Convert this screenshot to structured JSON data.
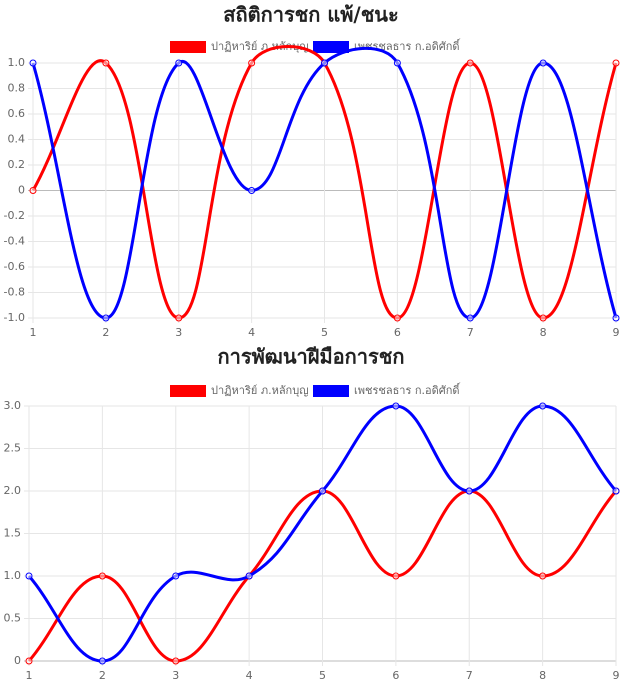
{
  "chart_data": [
    {
      "type": "line",
      "title": "สถิติการชก แพ้/ชนะ",
      "x": [
        1,
        2,
        3,
        4,
        5,
        6,
        7,
        8,
        9
      ],
      "series": [
        {
          "name": "ปาฏิหาริย์ ภ.หลักบุญ",
          "color": "#ff0000",
          "values": [
            0,
            1,
            -1,
            1,
            1,
            -1,
            1,
            -1,
            1
          ]
        },
        {
          "name": "เพชรชลธาร ก.อดิศักดิ์",
          "color": "#0000ff",
          "values": [
            1,
            -1,
            1,
            0,
            1,
            1,
            -1,
            1,
            -1
          ]
        }
      ],
      "xlim": [
        1,
        9
      ],
      "xticks": [
        1,
        2,
        3,
        4,
        5,
        6,
        7,
        8,
        9
      ],
      "ylim": [
        -1,
        1
      ],
      "yticks": [
        {
          "value": -1,
          "label": "-1.0"
        },
        -0.8,
        -0.6,
        -0.4,
        -0.2,
        0,
        0.2,
        0.4,
        0.6,
        0.8,
        {
          "value": 1,
          "label": "1.0"
        }
      ],
      "grid": true,
      "legend": "top"
    },
    {
      "type": "line",
      "title": "การพัฒนาฝีมือการชก",
      "x": [
        1,
        2,
        3,
        4,
        5,
        6,
        7,
        8,
        9
      ],
      "series": [
        {
          "name": "ปาฏิหาริย์ ภ.หลักบุญ",
          "color": "#ff0000",
          "values": [
            0,
            1,
            0,
            1,
            2,
            1,
            2,
            1,
            2
          ]
        },
        {
          "name": "เพชรชลธาร ก.อดิศักดิ์",
          "color": "#0000ff",
          "values": [
            1,
            0,
            1,
            1,
            2,
            3,
            2,
            3,
            2
          ]
        }
      ],
      "xlim": [
        1,
        9
      ],
      "xticks": [
        1,
        2,
        3,
        4,
        5,
        6,
        7,
        8,
        9
      ],
      "ylim": [
        0,
        3
      ],
      "yticks": [
        0,
        0.5,
        {
          "value": 1,
          "label": "1.0"
        },
        1.5,
        {
          "value": 2,
          "label": "2.0"
        },
        2.5,
        {
          "value": 3,
          "label": "3.0"
        }
      ],
      "grid": true,
      "legend": "top"
    }
  ]
}
